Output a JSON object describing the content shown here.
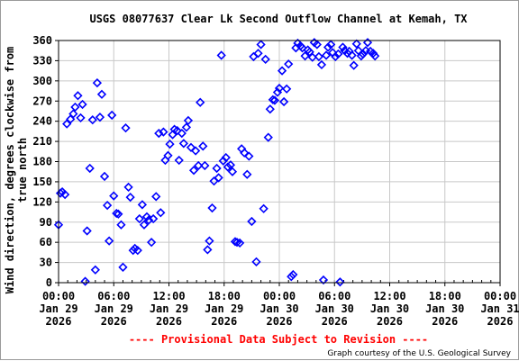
{
  "chart_data": {
    "type": "scatter",
    "title": "USGS 08077637 Clear Lk Second Outflow Channel at Kemah, TX",
    "ylabel_lines": [
      "Wind direction, degrees clockwise from",
      "true north"
    ],
    "xlabel": "",
    "ylim": [
      0,
      360
    ],
    "y_ticks": [
      "0",
      "30",
      "60",
      "90",
      "120",
      "150",
      "180",
      "210",
      "240",
      "270",
      "300",
      "330",
      "360"
    ],
    "x_range_hours": [
      0,
      48
    ],
    "x_ticks": [
      {
        "time": "00:00",
        "day": "Jan 29",
        "year": "2026"
      },
      {
        "time": "06:00",
        "day": "Jan 29",
        "year": "2026"
      },
      {
        "time": "12:00",
        "day": "Jan 29",
        "year": "2026"
      },
      {
        "time": "18:00",
        "day": "Jan 29",
        "year": "2026"
      },
      {
        "time": "00:00",
        "day": "Jan 30",
        "year": "2026"
      },
      {
        "time": "06:00",
        "day": "Jan 30",
        "year": "2026"
      },
      {
        "time": "12:00",
        "day": "Jan 30",
        "year": "2026"
      },
      {
        "time": "18:00",
        "day": "Jan 30",
        "year": "2026"
      },
      {
        "time": "00:00",
        "day": "Jan 31",
        "year": "2026"
      }
    ],
    "grid": true,
    "marker": "diamond",
    "series_color": "#0000ff",
    "points": [
      [
        0.0,
        86
      ],
      [
        0.2,
        133
      ],
      [
        0.4,
        135
      ],
      [
        0.7,
        131
      ],
      [
        0.9,
        236
      ],
      [
        1.3,
        243
      ],
      [
        1.6,
        251
      ],
      [
        1.8,
        261
      ],
      [
        2.1,
        278
      ],
      [
        2.4,
        245
      ],
      [
        2.6,
        265
      ],
      [
        2.9,
        2
      ],
      [
        3.1,
        77
      ],
      [
        3.4,
        170
      ],
      [
        3.7,
        242
      ],
      [
        4.0,
        19
      ],
      [
        4.2,
        297
      ],
      [
        4.5,
        246
      ],
      [
        4.7,
        280
      ],
      [
        5.0,
        158
      ],
      [
        5.3,
        115
      ],
      [
        5.5,
        62
      ],
      [
        5.8,
        249
      ],
      [
        6.0,
        129
      ],
      [
        6.3,
        103
      ],
      [
        6.5,
        102
      ],
      [
        6.8,
        86
      ],
      [
        7.0,
        23
      ],
      [
        7.3,
        230
      ],
      [
        7.6,
        142
      ],
      [
        7.8,
        127
      ],
      [
        8.1,
        48
      ],
      [
        8.3,
        51
      ],
      [
        8.6,
        48
      ],
      [
        8.8,
        95
      ],
      [
        9.1,
        116
      ],
      [
        9.3,
        86
      ],
      [
        9.6,
        98
      ],
      [
        9.8,
        93
      ],
      [
        10.1,
        60
      ],
      [
        10.3,
        95
      ],
      [
        10.6,
        128
      ],
      [
        10.9,
        222
      ],
      [
        11.1,
        104
      ],
      [
        11.4,
        224
      ],
      [
        11.6,
        182
      ],
      [
        11.9,
        189
      ],
      [
        12.1,
        206
      ],
      [
        12.4,
        220
      ],
      [
        12.6,
        228
      ],
      [
        12.9,
        226
      ],
      [
        13.1,
        182
      ],
      [
        13.4,
        222
      ],
      [
        13.6,
        207
      ],
      [
        13.9,
        231
      ],
      [
        14.1,
        241
      ],
      [
        14.4,
        201
      ],
      [
        14.7,
        167
      ],
      [
        14.9,
        196
      ],
      [
        15.2,
        174
      ],
      [
        15.4,
        268
      ],
      [
        15.7,
        203
      ],
      [
        15.9,
        174
      ],
      [
        16.2,
        49
      ],
      [
        16.4,
        62
      ],
      [
        16.7,
        111
      ],
      [
        16.9,
        151
      ],
      [
        17.2,
        170
      ],
      [
        17.4,
        156
      ],
      [
        17.7,
        338
      ],
      [
        17.9,
        181
      ],
      [
        18.2,
        186
      ],
      [
        18.4,
        172
      ],
      [
        18.7,
        175
      ],
      [
        18.9,
        165
      ],
      [
        19.2,
        61
      ],
      [
        19.4,
        60
      ],
      [
        19.7,
        59
      ],
      [
        19.9,
        199
      ],
      [
        20.2,
        193
      ],
      [
        20.5,
        161
      ],
      [
        20.7,
        188
      ],
      [
        21.0,
        91
      ],
      [
        21.2,
        336
      ],
      [
        21.5,
        31
      ],
      [
        21.7,
        341
      ],
      [
        22.0,
        354
      ],
      [
        22.3,
        110
      ],
      [
        22.5,
        332
      ],
      [
        22.8,
        216
      ],
      [
        23.0,
        258
      ],
      [
        23.3,
        272
      ],
      [
        23.5,
        271
      ],
      [
        23.8,
        283
      ],
      [
        24.0,
        289
      ],
      [
        24.3,
        315
      ],
      [
        24.5,
        269
      ],
      [
        24.8,
        288
      ],
      [
        25.0,
        325
      ],
      [
        25.3,
        9
      ],
      [
        25.5,
        12
      ],
      [
        25.8,
        349
      ],
      [
        26.0,
        356
      ],
      [
        26.3,
        352
      ],
      [
        26.5,
        349
      ],
      [
        26.8,
        337
      ],
      [
        27.1,
        346
      ],
      [
        27.3,
        343
      ],
      [
        27.6,
        335
      ],
      [
        27.8,
        357
      ],
      [
        28.1,
        354
      ],
      [
        28.3,
        336
      ],
      [
        28.6,
        324
      ],
      [
        28.8,
        4
      ],
      [
        29.1,
        338
      ],
      [
        29.3,
        350
      ],
      [
        29.6,
        354
      ],
      [
        29.8,
        342
      ],
      [
        30.1,
        336
      ],
      [
        30.4,
        340
      ],
      [
        30.6,
        1
      ],
      [
        30.9,
        350
      ],
      [
        31.1,
        345
      ],
      [
        31.4,
        341
      ],
      [
        31.6,
        344
      ],
      [
        31.9,
        338
      ],
      [
        32.1,
        323
      ],
      [
        32.4,
        355
      ],
      [
        32.6,
        345
      ],
      [
        32.9,
        337
      ],
      [
        33.1,
        340
      ],
      [
        33.4,
        345
      ],
      [
        33.6,
        357
      ],
      [
        33.9,
        344
      ],
      [
        34.2,
        341
      ],
      [
        34.4,
        337
      ]
    ],
    "footer_note": "---- Provisional Data Subject to Revision ----",
    "credit": "Graph courtesy of the U.S. Geological Survey"
  }
}
